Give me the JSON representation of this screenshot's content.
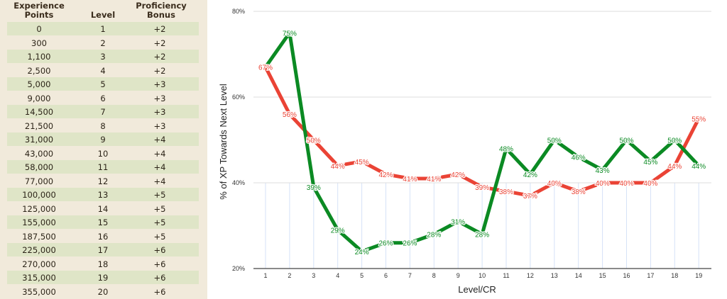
{
  "table": {
    "headers": [
      "Experience Points",
      "Level",
      "Proficiency Bonus"
    ],
    "rows": [
      [
        "0",
        "1",
        "+2"
      ],
      [
        "300",
        "2",
        "+2"
      ],
      [
        "1,100",
        "3",
        "+2"
      ],
      [
        "2,500",
        "4",
        "+2"
      ],
      [
        "5,000",
        "5",
        "+3"
      ],
      [
        "9,000",
        "6",
        "+3"
      ],
      [
        "14,500",
        "7",
        "+3"
      ],
      [
        "21,500",
        "8",
        "+3"
      ],
      [
        "31,000",
        "9",
        "+4"
      ],
      [
        "43,000",
        "10",
        "+4"
      ],
      [
        "58,000",
        "11",
        "+4"
      ],
      [
        "77,000",
        "12",
        "+4"
      ],
      [
        "100,000",
        "13",
        "+5"
      ],
      [
        "125,000",
        "14",
        "+5"
      ],
      [
        "155,000",
        "15",
        "+5"
      ],
      [
        "187,500",
        "16",
        "+5"
      ],
      [
        "225,000",
        "17",
        "+6"
      ],
      [
        "270,000",
        "18",
        "+6"
      ],
      [
        "315,000",
        "19",
        "+6"
      ],
      [
        "355,000",
        "20",
        "+6"
      ]
    ]
  },
  "chart_data": {
    "type": "line",
    "title": "",
    "xlabel": "Level/CR",
    "ylabel": "% of XP Towards Next Level",
    "x": [
      1,
      2,
      3,
      4,
      5,
      6,
      7,
      8,
      9,
      10,
      11,
      12,
      13,
      14,
      15,
      16,
      17,
      18,
      19
    ],
    "ylim": [
      20,
      80
    ],
    "yticks": [
      "20%",
      "40%",
      "60%",
      "80%"
    ],
    "grid": true,
    "legend": "none",
    "series": [
      {
        "name": "green",
        "color": "#0b8a23",
        "values": [
          67,
          75,
          39,
          29,
          24,
          26,
          26,
          28,
          31,
          28,
          48,
          42,
          50,
          46,
          43,
          50,
          45,
          50,
          44
        ]
      },
      {
        "name": "red",
        "color": "#ea4335",
        "values": [
          67,
          56,
          50,
          44,
          45,
          42,
          41,
          41,
          42,
          39,
          38,
          37,
          40,
          38,
          40,
          40,
          40,
          44,
          55
        ]
      }
    ]
  }
}
